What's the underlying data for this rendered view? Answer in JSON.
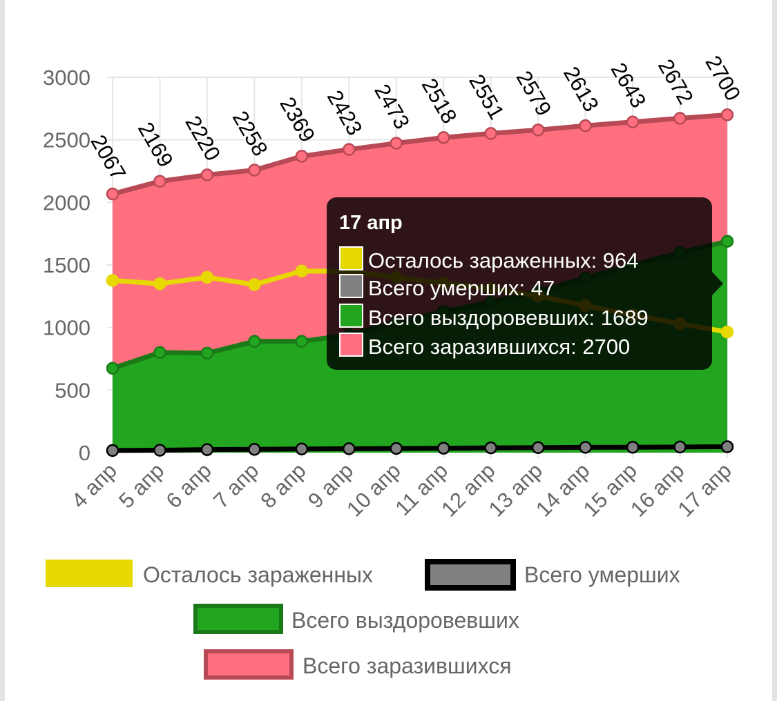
{
  "chart_data": {
    "type": "area",
    "categories": [
      "4 апр",
      "5 апр",
      "6 апр",
      "7 апр",
      "8 апр",
      "9 апр",
      "10 апр",
      "11 апр",
      "12 апр",
      "13 апр",
      "14 апр",
      "15 апр",
      "16 апр",
      "17 апр"
    ],
    "ylim": [
      0,
      3000
    ],
    "y_ticks": [
      "0",
      "500",
      "1000",
      "1500",
      "2000",
      "2500",
      "3000"
    ],
    "grid": true,
    "legend_position": "bottom",
    "series": [
      {
        "name": "Осталось зараженных",
        "type": "line",
        "color": "#e6d800",
        "values": [
          1376,
          1350,
          1401,
          1343,
          1451,
          1450,
          1400,
          1355,
          1310,
          1251,
          1175,
          1100,
          1030,
          964
        ]
      },
      {
        "name": "Всего умерших",
        "type": "line",
        "color": "#808080",
        "border": "#000000",
        "values": [
          17,
          19,
          24,
          26,
          29,
          31,
          33,
          35,
          38,
          40,
          42,
          43,
          45,
          47
        ]
      },
      {
        "name": "Всего выздоровевших",
        "type": "area",
        "color": "#22a61f",
        "border": "#1a7a17",
        "values": [
          674,
          800,
          795,
          889,
          889,
          942,
          1040,
          1128,
          1203,
          1288,
          1396,
          1500,
          1597,
          1689
        ]
      },
      {
        "name": "Всего заразившихся",
        "type": "area",
        "color": "#ff6f7f",
        "border": "#b84a56",
        "values": [
          2067,
          2169,
          2220,
          2258,
          2369,
          2423,
          2473,
          2518,
          2551,
          2579,
          2613,
          2643,
          2672,
          2700
        ],
        "data_labels": [
          "2067",
          "2169",
          "2220",
          "2258",
          "2369",
          "2423",
          "2473",
          "2518",
          "2551",
          "2579",
          "2613",
          "2643",
          "2672",
          "2700"
        ]
      }
    ]
  },
  "tooltip": {
    "title": "17 апр",
    "rows": [
      {
        "text": "Осталось зараженных: 964",
        "color": "#e6d800"
      },
      {
        "text": "Всего умерших: 47",
        "color": "#808080"
      },
      {
        "text": "Всего выздоровевших: 1689",
        "color": "#22a61f"
      },
      {
        "text": "Всего заразившихся: 2700",
        "color": "#ff6f7f"
      }
    ]
  }
}
